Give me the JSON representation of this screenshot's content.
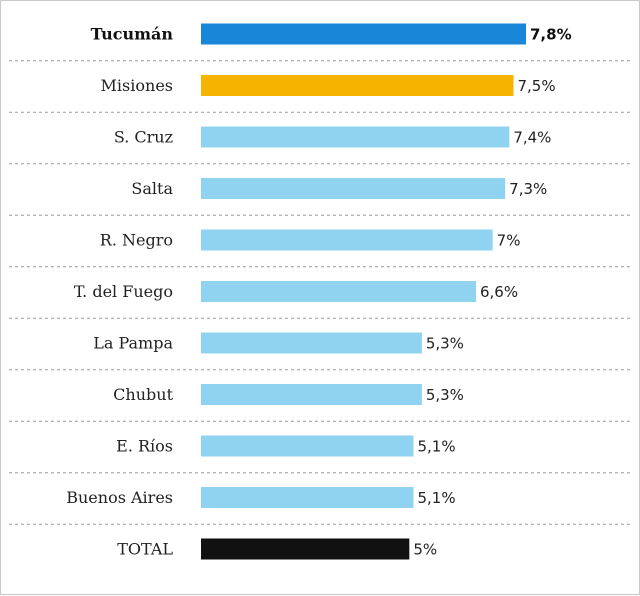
{
  "chart_data": {
    "type": "bar",
    "orientation": "horizontal",
    "categories": [
      "Tucumán",
      "Misiones",
      "S. Cruz",
      "Salta",
      "R. Negro",
      "T. del Fuego",
      "La Pampa",
      "Chubut",
      "E. Ríos",
      "Buenos Aires",
      "TOTAL"
    ],
    "values": [
      7.8,
      7.5,
      7.4,
      7.3,
      7.0,
      6.6,
      5.3,
      5.3,
      5.1,
      5.1,
      5.0
    ],
    "value_labels": [
      "7,8%",
      "7,5%",
      "7,4%",
      "7,3%",
      "7%",
      "6,6%",
      "5,3%",
      "5,3%",
      "5,1%",
      "5,1%",
      "5%"
    ],
    "bar_colors": [
      "#1a86d8",
      "#f5b400",
      "#8fd3f1",
      "#8fd3f1",
      "#8fd3f1",
      "#8fd3f1",
      "#8fd3f1",
      "#8fd3f1",
      "#8fd3f1",
      "#8fd3f1",
      "#111111"
    ],
    "highlight": [
      "Tucumán"
    ],
    "xlim": [
      0,
      7.8
    ],
    "grid": false,
    "row_separators": "dashed"
  }
}
